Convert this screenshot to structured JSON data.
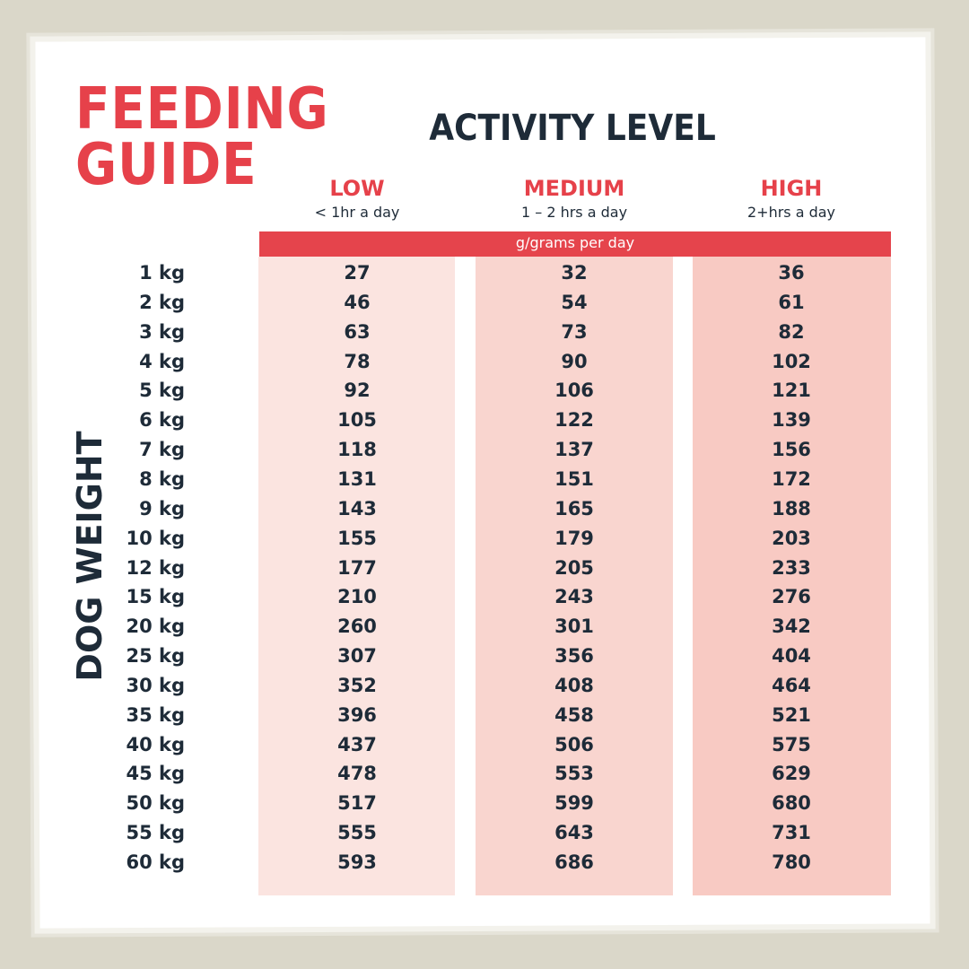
{
  "header": {
    "title": [
      "FEEDING",
      "GUIDE"
    ],
    "column_group": "ACTIVITY LEVEL",
    "row_group": "DOG WEIGHT",
    "unit": "g/grams per day"
  },
  "table": {
    "columns": [
      {
        "name": "LOW",
        "note": "< 1hr a day"
      },
      {
        "name": "MEDIUM",
        "note": "1 – 2 hrs a day"
      },
      {
        "name": "HIGH",
        "note": "2+hrs a day"
      }
    ],
    "rows": [
      [
        "1 kg",
        27,
        32,
        36
      ],
      [
        "2 kg",
        46,
        54,
        61
      ],
      [
        "3 kg",
        63,
        73,
        82
      ],
      [
        "4 kg",
        78,
        90,
        102
      ],
      [
        "5 kg",
        92,
        106,
        121
      ],
      [
        "6 kg",
        105,
        122,
        139
      ],
      [
        "7 kg",
        118,
        137,
        156
      ],
      [
        "8 kg",
        131,
        151,
        172
      ],
      [
        "9 kg",
        143,
        165,
        188
      ],
      [
        "10 kg",
        155,
        179,
        203
      ],
      [
        "12 kg",
        177,
        205,
        233
      ],
      [
        "15 kg",
        210,
        243,
        276
      ],
      [
        "20 kg",
        260,
        301,
        342
      ],
      [
        "25 kg",
        307,
        356,
        404
      ],
      [
        "30 kg",
        352,
        408,
        464
      ],
      [
        "35 kg",
        396,
        458,
        521
      ],
      [
        "40 kg",
        437,
        506,
        575
      ],
      [
        "45 kg",
        478,
        553,
        629
      ],
      [
        "50 kg",
        517,
        599,
        680
      ],
      [
        "55 kg",
        555,
        643,
        731
      ],
      [
        "60 kg",
        593,
        686,
        780
      ]
    ]
  }
}
